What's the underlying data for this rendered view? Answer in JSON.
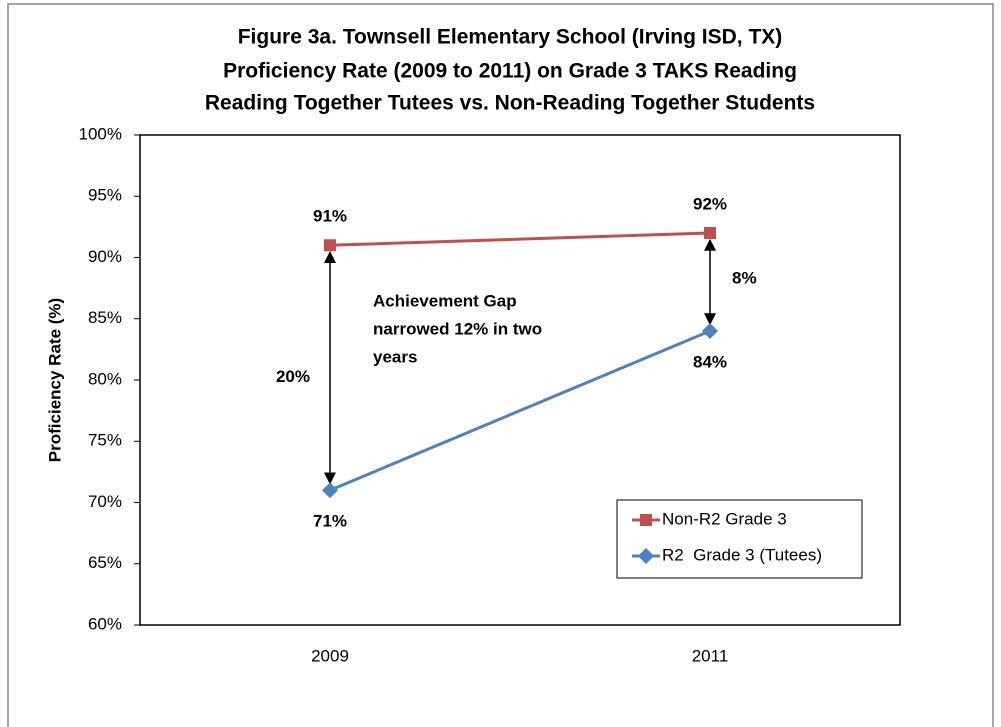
{
  "chart_data": {
    "type": "line",
    "title": [
      "Figure 3a. Townsell Elementary School (Irving ISD, TX)",
      "Proficiency Rate (2009 to 2011) on Grade 3 TAKS Reading",
      "Reading Together Tutees vs. Non-Reading Together Students"
    ],
    "y_label": "Proficiency Rate (%)",
    "categories": [
      "2009",
      "2011"
    ],
    "series": [
      {
        "name": "Non-R2 Grade 3",
        "color": "#c0504d",
        "marker": "square",
        "values": [
          91,
          92
        ],
        "value_labels": [
          "91%",
          "92%"
        ]
      },
      {
        "name": "R2  Grade 3 (Tutees)",
        "color": "#4f81bd",
        "marker": "diamond",
        "values": [
          71,
          84
        ],
        "value_labels": [
          "71%",
          "84%"
        ]
      }
    ],
    "ylim": [
      60,
      100
    ],
    "yticks": [
      {
        "value": 60,
        "label": "60%"
      },
      {
        "value": 65,
        "label": "65%"
      },
      {
        "value": 70,
        "label": "70%"
      },
      {
        "value": 75,
        "label": "75%"
      },
      {
        "value": 80,
        "label": "80%"
      },
      {
        "value": 85,
        "label": "85%"
      },
      {
        "value": 90,
        "label": "90%"
      },
      {
        "value": 95,
        "label": "95%"
      },
      {
        "value": 100,
        "label": "100%"
      }
    ],
    "gap_labels": [
      "20%",
      "8%"
    ],
    "annotation": [
      "Achievement Gap",
      "narrowed 12% in two",
      "years"
    ],
    "legend": "lower right",
    "grid": false
  }
}
